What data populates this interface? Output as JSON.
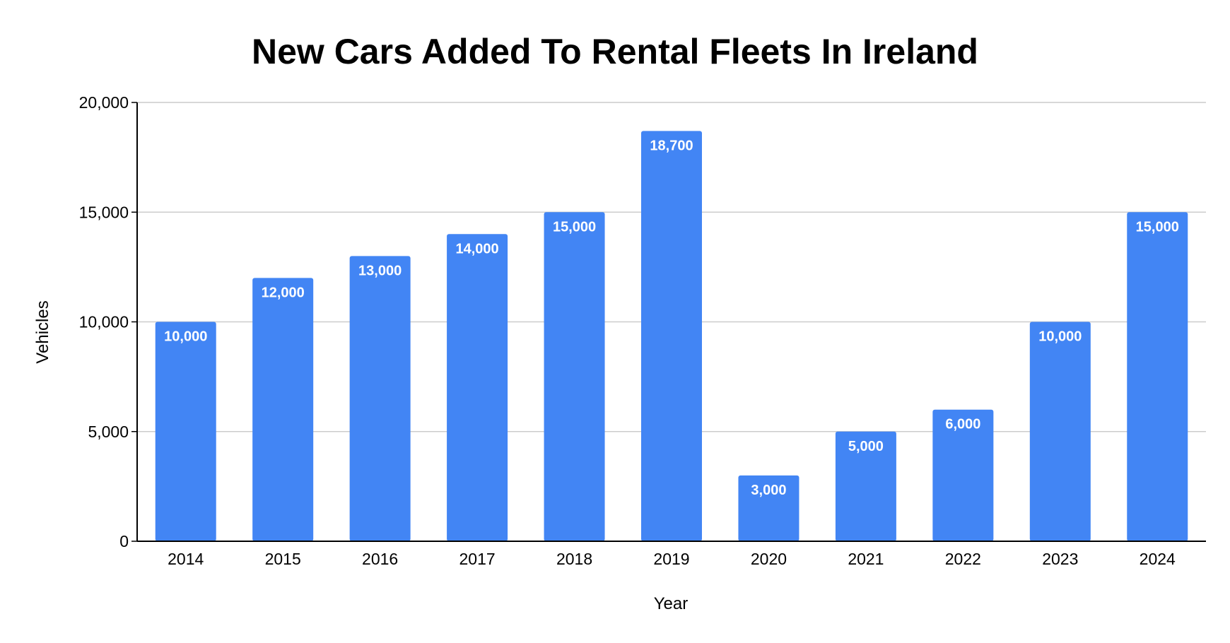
{
  "chart_data": {
    "type": "bar",
    "title": "New Cars Added To Rental Fleets In Ireland",
    "xlabel": "Year",
    "ylabel": "Vehicles",
    "categories": [
      "2014",
      "2015",
      "2016",
      "2017",
      "2018",
      "2019",
      "2020",
      "2021",
      "2022",
      "2023",
      "2024"
    ],
    "values": [
      10000,
      12000,
      13000,
      14000,
      15000,
      18700,
      3000,
      5000,
      6000,
      10000,
      15000
    ],
    "data_labels": [
      "10,000",
      "12,000",
      "13,000",
      "14,000",
      "15,000",
      "18,700",
      "3,000",
      "5,000",
      "6,000",
      "10,000",
      "15,000"
    ],
    "ylim": [
      0,
      20000
    ],
    "yticks": [
      0,
      5000,
      10000,
      15000,
      20000
    ],
    "ytick_labels": [
      "0",
      "5,000",
      "10,000",
      "15,000",
      "20,000"
    ],
    "grid": true,
    "legend": "none",
    "colors": {
      "bar": "#4285f4",
      "grid": "#cccccc",
      "axis": "#000000",
      "label": "#ffffff"
    }
  }
}
